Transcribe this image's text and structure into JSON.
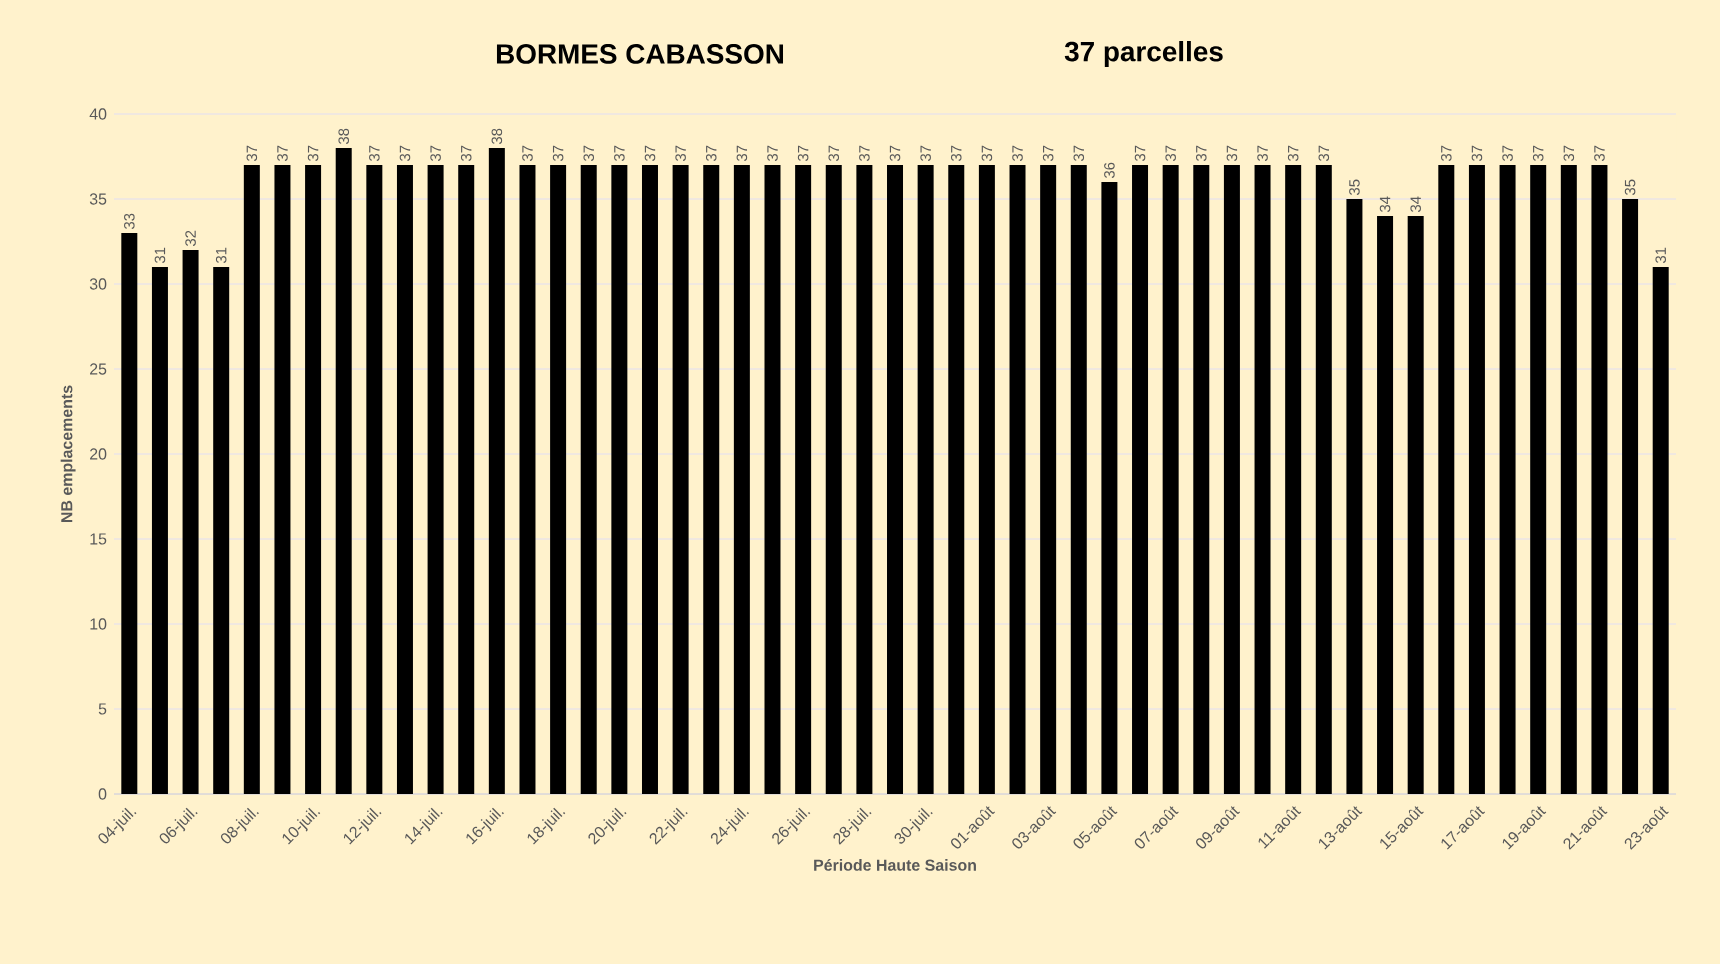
{
  "chart_data": {
    "type": "bar",
    "title": "BORMES CABASSON",
    "subtitle": "37 parcelles",
    "xlabel": "Période Haute Saison",
    "ylabel": "NB emplacements",
    "categories": [
      "04-juil.",
      null,
      "06-juil.",
      null,
      "08-juil.",
      null,
      "10-juil.",
      null,
      "12-juil.",
      null,
      "14-juil.",
      null,
      "16-juil.",
      null,
      "18-juil.",
      null,
      "20-juil.",
      null,
      "22-juil.",
      null,
      "24-juil.",
      null,
      "26-juil.",
      null,
      "28-juil.",
      null,
      "30-juil.",
      null,
      "01-août",
      null,
      "03-août",
      null,
      "05-août",
      null,
      "07-août",
      null,
      "09-août",
      null,
      "11-août",
      null,
      "13-août",
      null,
      "15-août",
      null,
      "17-août",
      null,
      "19-août",
      null,
      "21-août",
      null,
      "23-août"
    ],
    "values": [
      33,
      31,
      32,
      31,
      37,
      37,
      37,
      38,
      37,
      37,
      37,
      37,
      38,
      37,
      37,
      37,
      37,
      37,
      37,
      37,
      37,
      37,
      37,
      37,
      37,
      37,
      37,
      37,
      37,
      37,
      37,
      37,
      36,
      37,
      37,
      37,
      37,
      37,
      37,
      37,
      35,
      34,
      34,
      37,
      37,
      37,
      37,
      37,
      37,
      35,
      31
    ],
    "color": "#000000",
    "ylim": [
      0,
      40
    ],
    "yticks": [
      0,
      5,
      10,
      15,
      20,
      25,
      30,
      35,
      40
    ],
    "grid": "y",
    "data_labels": true
  }
}
